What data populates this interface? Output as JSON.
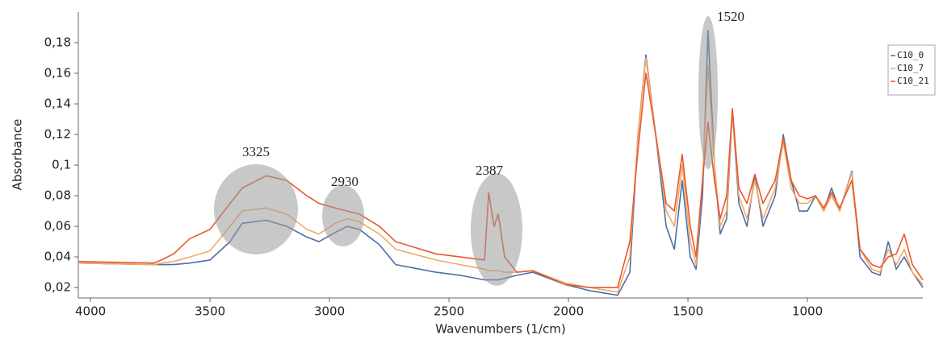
{
  "chart_data": {
    "type": "line",
    "xlabel": "Wavenumbers (1/cm)",
    "ylabel": "Absorbance",
    "x": [
      4051,
      3736,
      3703,
      3652,
      3584,
      3500,
      3416,
      3365,
      3264,
      3179,
      3095,
      3044,
      2976,
      2926,
      2875,
      2791,
      2723,
      2554,
      2453,
      2351,
      2334,
      2311,
      2294,
      2267,
      2216,
      2149,
      2014,
      1912,
      1794,
      1743,
      1709,
      1676,
      1635,
      1591,
      1557,
      1524,
      1490,
      1466,
      1439,
      1416,
      1389,
      1365,
      1338,
      1314,
      1287,
      1253,
      1220,
      1186,
      1135,
      1101,
      1068,
      1034,
      1000,
      966,
      932,
      899,
      865,
      814,
      780,
      730,
      696,
      662,
      628,
      595,
      561,
      517
    ],
    "series": [
      {
        "name": "C10_0",
        "color": "#4a6fa8",
        "values": [
          0.036,
          0.035,
          0.035,
          0.035,
          0.036,
          0.038,
          0.05,
          0.062,
          0.064,
          0.06,
          0.053,
          0.05,
          0.056,
          0.06,
          0.058,
          0.048,
          0.035,
          0.03,
          0.028,
          0.025,
          0.025,
          0.025,
          0.025,
          0.026,
          0.028,
          0.03,
          0.022,
          0.018,
          0.015,
          0.03,
          0.12,
          0.172,
          0.12,
          0.06,
          0.045,
          0.09,
          0.04,
          0.032,
          0.08,
          0.188,
          0.1,
          0.055,
          0.065,
          0.135,
          0.075,
          0.06,
          0.093,
          0.06,
          0.08,
          0.12,
          0.09,
          0.07,
          0.07,
          0.08,
          0.07,
          0.085,
          0.07,
          0.096,
          0.04,
          0.03,
          0.028,
          0.05,
          0.032,
          0.04,
          0.03,
          0.02
        ]
      },
      {
        "name": "C10_7",
        "color": "#f5a862",
        "values": [
          0.036,
          0.035,
          0.036,
          0.037,
          0.04,
          0.044,
          0.06,
          0.07,
          0.072,
          0.068,
          0.058,
          0.055,
          0.062,
          0.065,
          0.063,
          0.055,
          0.045,
          0.038,
          0.035,
          0.032,
          0.031,
          0.031,
          0.031,
          0.03,
          0.03,
          0.031,
          0.023,
          0.02,
          0.017,
          0.04,
          0.12,
          0.17,
          0.12,
          0.07,
          0.06,
          0.1,
          0.05,
          0.035,
          0.09,
          0.165,
          0.1,
          0.06,
          0.07,
          0.135,
          0.08,
          0.065,
          0.09,
          0.065,
          0.085,
          0.115,
          0.085,
          0.075,
          0.075,
          0.08,
          0.07,
          0.08,
          0.07,
          0.095,
          0.045,
          0.032,
          0.03,
          0.045,
          0.035,
          0.045,
          0.03,
          0.022
        ]
      },
      {
        "name": "C10_21",
        "color": "#e8582e",
        "values": [
          0.037,
          0.036,
          0.038,
          0.042,
          0.052,
          0.058,
          0.075,
          0.085,
          0.093,
          0.09,
          0.08,
          0.075,
          0.072,
          0.07,
          0.068,
          0.06,
          0.05,
          0.042,
          0.04,
          0.038,
          0.082,
          0.06,
          0.068,
          0.04,
          0.03,
          0.031,
          0.022,
          0.02,
          0.02,
          0.05,
          0.11,
          0.16,
          0.12,
          0.075,
          0.07,
          0.107,
          0.06,
          0.04,
          0.09,
          0.128,
          0.09,
          0.065,
          0.08,
          0.137,
          0.085,
          0.075,
          0.094,
          0.075,
          0.09,
          0.118,
          0.09,
          0.08,
          0.078,
          0.08,
          0.072,
          0.082,
          0.072,
          0.09,
          0.045,
          0.035,
          0.033,
          0.04,
          0.042,
          0.055,
          0.035,
          0.025
        ]
      }
    ],
    "xlim": [
      4051,
      517
    ],
    "xticks": [
      4000,
      3500,
      3000,
      2500,
      2000,
      1500,
      1000
    ],
    "ylim": [
      0.0132,
      0.2
    ],
    "yticks": [
      {
        "value": 0.02,
        "label": "0,02"
      },
      {
        "value": 0.04,
        "label": "0,04"
      },
      {
        "value": 0.06,
        "label": "0,06"
      },
      {
        "value": 0.08,
        "label": "0,08"
      },
      {
        "value": 0.1,
        "label": "0,1"
      },
      {
        "value": 0.12,
        "label": "0,12"
      },
      {
        "value": 0.14,
        "label": "0,14"
      },
      {
        "value": 0.16,
        "label": "0,16"
      },
      {
        "value": 0.18,
        "label": "0,18"
      }
    ],
    "annotations": [
      "3325",
      "2930",
      "2387",
      "1520"
    ],
    "legend": "upper right"
  }
}
